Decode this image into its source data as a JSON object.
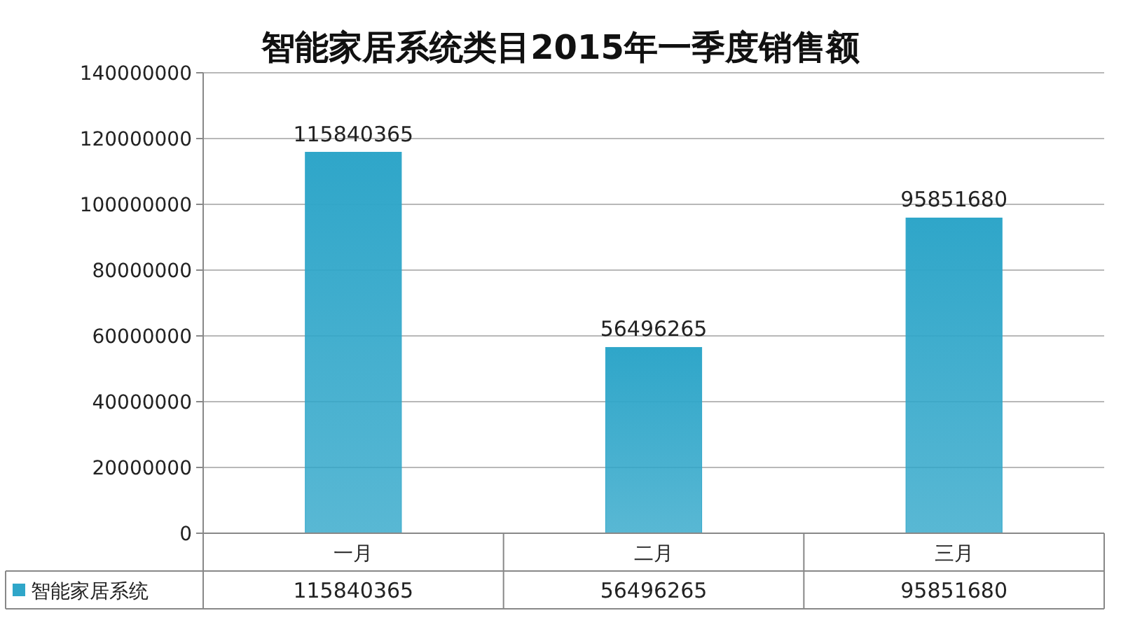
{
  "chart_data": {
    "type": "bar",
    "title": "智能家居系统类目2015年一季度销售额",
    "categories": [
      "一月",
      "二月",
      "三月"
    ],
    "series": [
      {
        "name": "智能家居系统",
        "color": "#2fa6c9",
        "values": [
          115840365,
          56496265,
          95851680
        ]
      }
    ],
    "annotations": [
      {
        "text": "115840365",
        "x": "一月",
        "y": 115840365
      },
      {
        "text": "56496265",
        "x": "二月",
        "y": 56496265
      },
      {
        "text": "95851680",
        "x": "三月",
        "y": 95851680
      }
    ],
    "ylim": [
      0,
      140000000
    ],
    "yticks": [
      0,
      20000000,
      40000000,
      60000000,
      80000000,
      100000000,
      120000000,
      140000000
    ],
    "grid": "y",
    "data_labels": true,
    "legend": "bottom"
  }
}
